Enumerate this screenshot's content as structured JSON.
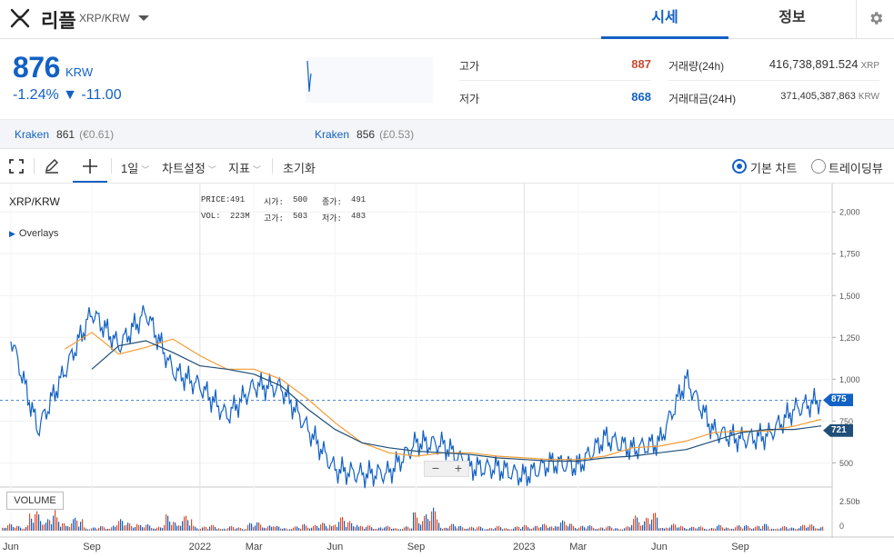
{
  "header": {
    "coin_name": "리플",
    "pair": "XRP/KRW",
    "tabs": [
      {
        "label": "시세",
        "active": true
      },
      {
        "label": "정보",
        "active": false
      }
    ],
    "icons": {
      "logo": "xrp-logo-icon",
      "dropdown": "chevron-down-icon",
      "settings": "gear-icon"
    }
  },
  "summary": {
    "price": "876",
    "unit": "KRW",
    "change": "-1.24% ▼ -11.00",
    "high_label": "고가",
    "high_value": "887",
    "low_label": "저가",
    "low_value": "868",
    "volume_label": "거래량(24h)",
    "volume_value": "416,738,891.524",
    "volume_unit": "XRP",
    "amount_label": "거래대금(24H)",
    "amount_value": "371,405,387,863",
    "amount_unit": "KRW",
    "colors": {
      "up": "#c84a31",
      "down": "#1261c4"
    }
  },
  "exchanges": [
    {
      "name": "Kraken",
      "price": "861",
      "fx": "(€0.61)"
    },
    {
      "name": "Kraken",
      "price": "856",
      "fx": "(£0.53)"
    }
  ],
  "toolbar": {
    "interval": "1일",
    "chart_settings": "차트설정",
    "indicators": "지표",
    "reset": "초기화",
    "chart_mode_basic": "기본 차트",
    "chart_mode_tv": "트레이딩뷰",
    "selected_mode": "basic"
  },
  "chart_legend": {
    "symbol": "XRP/KRW",
    "overlays": "Overlays",
    "price_label": "PRICE:",
    "price_value": "491",
    "open_label": "시가:",
    "open_value": "500",
    "close_label": "종가:",
    "close_value": "491",
    "vol_label": "VOL:",
    "vol_value": "223M",
    "high_label": "고가:",
    "high_value": "503",
    "low_label": "저가:",
    "low_value": "483",
    "volume_pane": "VOLUME",
    "zoom_out": "−",
    "zoom_in": "+"
  },
  "chart_data": {
    "type": "line",
    "title": "",
    "x_ticks": [
      "Jun",
      "Sep",
      "2022",
      "Mar",
      "Jun",
      "Sep",
      "2023",
      "Mar",
      "Jun",
      "Sep"
    ],
    "y_ticks": [
      "2,000",
      "1,750",
      "1,500",
      "1,250",
      "1,000",
      "750",
      "500"
    ],
    "volume_ticks": [
      "2.50b",
      "0"
    ],
    "ylim": [
      350,
      2050
    ],
    "current_price": 875,
    "ma_last": 721,
    "series": [
      {
        "color": "#1261c4",
        "x": [
          "2021-06",
          "2021-07",
          "2021-08",
          "2021-09",
          "2021-10",
          "2021-11",
          "2021-12",
          "2022-01",
          "2022-02",
          "2022-03",
          "2022-04",
          "2022-05",
          "2022-06",
          "2022-07",
          "2022-08",
          "2022-09",
          "2022-10",
          "2022-11",
          "2022-12",
          "2023-01",
          "2023-02",
          "2023-03",
          "2023-04",
          "2023-05",
          "2023-06",
          "2023-07",
          "2023-08",
          "2023-09",
          "2023-10",
          "2023-11",
          "2023-12"
        ],
        "values": [
          1250,
          700,
          1050,
          1400,
          1200,
          1400,
          1050,
          960,
          780,
          960,
          950,
          700,
          460,
          430,
          440,
          620,
          610,
          470,
          470,
          420,
          500,
          480,
          650,
          580,
          620,
          1000,
          690,
          640,
          660,
          820,
          875
        ]
      },
      {
        "color": "#f39c33",
        "x": [
          "2021-08",
          "2021-09",
          "2021-10",
          "2021-11",
          "2021-12",
          "2022-01",
          "2022-02",
          "2022-03",
          "2022-04",
          "2022-05",
          "2022-06",
          "2022-07",
          "2022-08",
          "2022-09",
          "2022-10",
          "2022-11",
          "2022-12",
          "2023-01",
          "2023-02",
          "2023-03",
          "2023-04",
          "2023-05",
          "2023-06",
          "2023-07",
          "2023-08",
          "2023-09",
          "2023-10",
          "2023-11",
          "2023-12"
        ],
        "values": [
          1180,
          1280,
          1150,
          1190,
          1240,
          1140,
          1060,
          1060,
          1000,
          880,
          740,
          620,
          560,
          540,
          560,
          560,
          540,
          530,
          520,
          520,
          540,
          590,
          600,
          630,
          680,
          690,
          690,
          720,
          760
        ]
      },
      {
        "color": "#1f4e79",
        "x": [
          "2021-09",
          "2021-10",
          "2021-11",
          "2021-12",
          "2022-01",
          "2022-02",
          "2022-03",
          "2022-04",
          "2022-05",
          "2022-06",
          "2022-07",
          "2022-08",
          "2022-09",
          "2022-10",
          "2022-11",
          "2022-12",
          "2023-01",
          "2023-02",
          "2023-03",
          "2023-04",
          "2023-05",
          "2023-06",
          "2023-07",
          "2023-08",
          "2023-09",
          "2023-10",
          "2023-11",
          "2023-12"
        ],
        "values": [
          1060,
          1200,
          1230,
          1160,
          1080,
          1060,
          1030,
          960,
          820,
          700,
          620,
          590,
          570,
          560,
          550,
          530,
          520,
          510,
          510,
          530,
          540,
          560,
          580,
          630,
          680,
          700,
          700,
          721
        ]
      }
    ],
    "volume_peaks": [
      0.3,
      0.9,
      0.6,
      0.2,
      0.5,
      0.3,
      0.7,
      0.25,
      0.2,
      0.4,
      0.2,
      0.35,
      0.6,
      0.25,
      0.2,
      1.0,
      0.3,
      0.2,
      0.2,
      0.3,
      0.45,
      0.25,
      0.2,
      0.8,
      0.3,
      0.2,
      0.25,
      0.3,
      0.2,
      0.3
    ],
    "grid": true,
    "legend": "top-left"
  }
}
